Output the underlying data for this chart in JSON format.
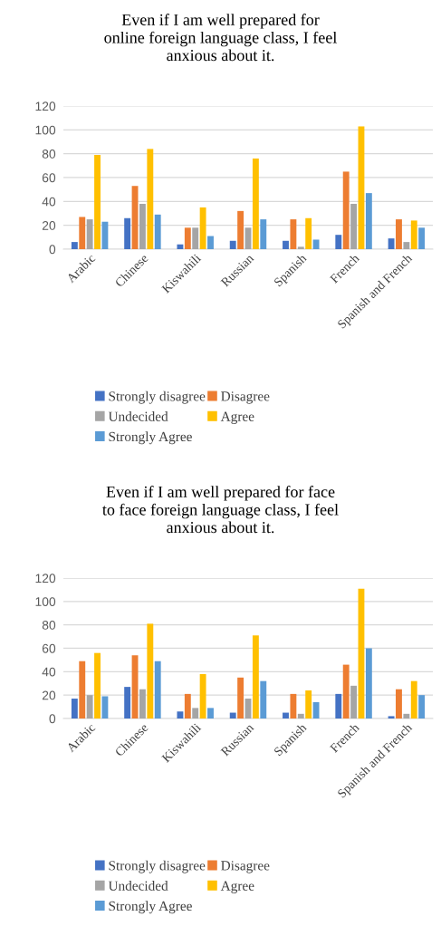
{
  "chart_data": [
    {
      "type": "bar",
      "title": "Even if I am well prepared for\nonline foreign language class, I feel\nanxious about it.",
      "categories": [
        "Arabic",
        "Chinese",
        "Kiswahili",
        "Russian",
        "Spanish",
        "French",
        "Spanish and French"
      ],
      "series": [
        {
          "name": "Strongly disagree",
          "color": "#4472c4",
          "values": [
            6,
            26,
            4,
            7,
            7,
            12,
            9
          ]
        },
        {
          "name": "Disagree",
          "color": "#ed7d31",
          "values": [
            27,
            53,
            18,
            32,
            25,
            65,
            25
          ]
        },
        {
          "name": "Undecided",
          "color": "#a5a5a5",
          "values": [
            25,
            38,
            18,
            18,
            2,
            38,
            6
          ]
        },
        {
          "name": "Agree",
          "color": "#ffc000",
          "values": [
            79,
            84,
            35,
            76,
            26,
            103,
            24
          ]
        },
        {
          "name": "Strongly Agree",
          "color": "#5b9bd5",
          "values": [
            23,
            29,
            11,
            25,
            8,
            47,
            18
          ]
        }
      ],
      "ylim": [
        0,
        120
      ],
      "yticks": [
        0,
        20,
        40,
        60,
        80,
        100,
        120
      ],
      "grid": "y",
      "legend": "bottom"
    },
    {
      "type": "bar",
      "title": "Even if I am well prepared for face\nto face foreign language class, I feel\nanxious about it.",
      "categories": [
        "Arabic",
        "Chinese",
        "Kiswahili",
        "Russian",
        "Spanish",
        "French",
        "Spanish and French"
      ],
      "series": [
        {
          "name": "Strongly disagree",
          "color": "#4472c4",
          "values": [
            17,
            27,
            6,
            5,
            5,
            21,
            2
          ]
        },
        {
          "name": "Disagree",
          "color": "#ed7d31",
          "values": [
            49,
            54,
            21,
            35,
            21,
            46,
            25
          ]
        },
        {
          "name": "Undecided",
          "color": "#a5a5a5",
          "values": [
            20,
            25,
            9,
            17,
            4,
            28,
            4
          ]
        },
        {
          "name": "Agree",
          "color": "#ffc000",
          "values": [
            56,
            81,
            38,
            71,
            24,
            111,
            32
          ]
        },
        {
          "name": "Strongly Agree",
          "color": "#5b9bd5",
          "values": [
            19,
            49,
            9,
            32,
            14,
            60,
            20
          ]
        }
      ],
      "ylim": [
        0,
        120
      ],
      "yticks": [
        0,
        20,
        40,
        60,
        80,
        100,
        120
      ],
      "grid": "y",
      "legend": "bottom"
    }
  ]
}
